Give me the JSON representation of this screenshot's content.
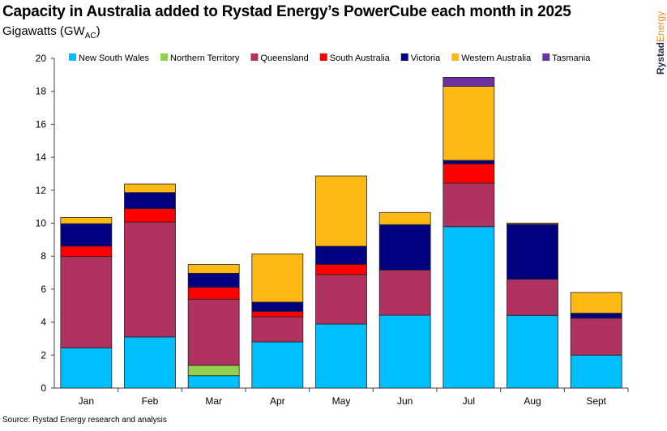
{
  "chart_data": {
    "type": "bar",
    "stacked": true,
    "title": "Capacity in Australia added to Rystad Energy’s PowerCube each month in 2025",
    "ylabel": "Gigawatts (GW",
    "ylabel_sub": "AC",
    "ylabel_close": ")",
    "ylim": [
      0,
      20
    ],
    "yticks": [
      0,
      2,
      4,
      6,
      8,
      10,
      12,
      14,
      16,
      18,
      20
    ],
    "legend_placement": "top",
    "categories": [
      "Jan",
      "Feb",
      "Mar",
      "Apr",
      "May",
      "Jun",
      "Jul",
      "Aug",
      "Sept"
    ],
    "series": [
      {
        "name": "New South Wales",
        "color": "#00bfff",
        "values": [
          2.44,
          3.1,
          0.75,
          2.8,
          3.88,
          4.42,
          9.79,
          4.41,
          2.0
        ]
      },
      {
        "name": "Northern Territory",
        "color": "#92d050",
        "values": [
          0,
          0,
          0.63,
          0,
          0,
          0,
          0,
          0,
          0
        ]
      },
      {
        "name": "Queensland",
        "color": "#b0325e",
        "values": [
          5.54,
          6.97,
          4.01,
          1.52,
          3.0,
          2.74,
          2.64,
          2.19,
          2.24
        ]
      },
      {
        "name": "South Australia",
        "color": "#ff0000",
        "values": [
          0.63,
          0.81,
          0.72,
          0.33,
          0.62,
          0,
          1.17,
          0,
          0
        ]
      },
      {
        "name": "Victoria",
        "color": "#000080",
        "values": [
          1.36,
          0.98,
          0.85,
          0.56,
          1.1,
          2.75,
          0.21,
          3.34,
          0.3
        ]
      },
      {
        "name": "Western Australia",
        "color": "#ffb914",
        "values": [
          0.38,
          0.52,
          0.53,
          2.93,
          4.27,
          0.74,
          4.49,
          0.07,
          1.26
        ]
      },
      {
        "name": "Tasmania",
        "color": "#7030a0",
        "values": [
          0,
          0,
          0,
          0,
          0,
          0,
          0.55,
          0,
          0
        ]
      }
    ]
  },
  "source": "Source: Rystad Energy research and analysis",
  "logo": {
    "part1": "Rystad",
    "part2": "Energy"
  }
}
